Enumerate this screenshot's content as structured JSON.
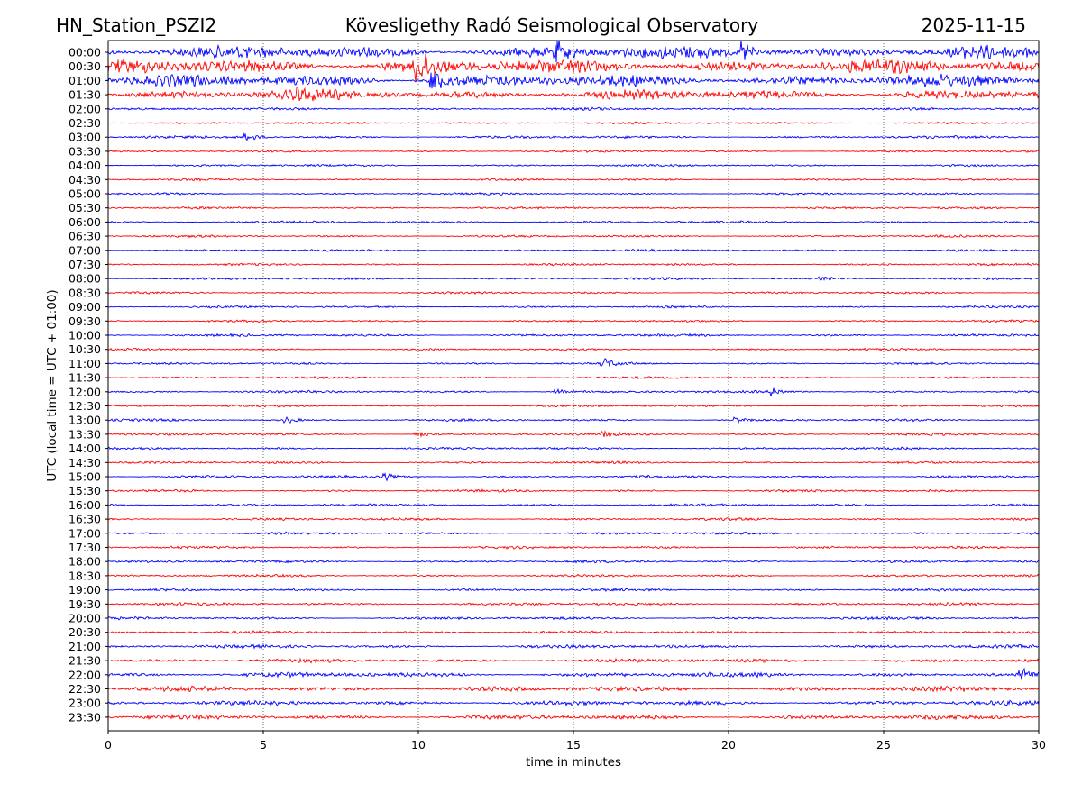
{
  "header": {
    "station": "HN_Station_PSZI2",
    "observatory": "Kövesligethy Radó Seismological Observatory",
    "date": "2025-11-15"
  },
  "chart_data": {
    "type": "line",
    "xlabel": "time in minutes",
    "ylabel": "UTC (local time = UTC + 01:00)",
    "xlim": [
      0,
      30
    ],
    "x_ticks": [
      "0",
      "5",
      "10",
      "15",
      "20",
      "25",
      "30"
    ],
    "x_tick_values": [
      0,
      5,
      10,
      15,
      20,
      25,
      30
    ],
    "grid": "vertical dotted at x ticks",
    "colors": {
      "even": "#0000ff",
      "odd": "#ff0000"
    },
    "rows": [
      "00:00",
      "00:30",
      "01:00",
      "01:30",
      "02:00",
      "02:30",
      "03:00",
      "03:30",
      "04:00",
      "04:30",
      "05:00",
      "05:30",
      "06:00",
      "06:30",
      "07:00",
      "07:30",
      "08:00",
      "08:30",
      "09:00",
      "09:30",
      "10:00",
      "10:30",
      "11:00",
      "11:30",
      "12:00",
      "12:30",
      "13:00",
      "13:30",
      "14:00",
      "14:30",
      "15:00",
      "15:30",
      "16:00",
      "16:30",
      "17:00",
      "17:30",
      "18:00",
      "18:30",
      "19:00",
      "19:30",
      "20:00",
      "20:30",
      "21:00",
      "21:30",
      "22:00",
      "22:30",
      "23:00",
      "23:30"
    ],
    "row_amplitude": [
      6.5,
      7,
      6,
      5,
      1.3,
      1.1,
      1.4,
      1.1,
      1.1,
      1.1,
      1.1,
      1.1,
      1.2,
      1.1,
      1.1,
      1.1,
      1.2,
      1.1,
      1.1,
      1.1,
      1.3,
      1.1,
      1.1,
      1.1,
      1.3,
      1.1,
      1.2,
      1.3,
      1.2,
      1.2,
      1.3,
      1.3,
      1.3,
      1.3,
      1.3,
      1.3,
      1.3,
      1.2,
      1.3,
      1.4,
      1.4,
      1.4,
      1.7,
      1.9,
      2.4,
      2.6,
      2.2,
      2.3
    ],
    "events": [
      {
        "row": 1,
        "x": 10.0,
        "amp": 12
      },
      {
        "row": 2,
        "x": 10.5,
        "amp": 10
      },
      {
        "row": 0,
        "x": 14.5,
        "amp": 8
      },
      {
        "row": 0,
        "x": 20.5,
        "amp": 8
      },
      {
        "row": 3,
        "x": 6.0,
        "amp": 5
      },
      {
        "row": 6,
        "x": 4.5,
        "amp": 3
      },
      {
        "row": 16,
        "x": 23.0,
        "amp": 3
      },
      {
        "row": 22,
        "x": 16.0,
        "amp": 4
      },
      {
        "row": 24,
        "x": 14.5,
        "amp": 3
      },
      {
        "row": 24,
        "x": 21.5,
        "amp": 3
      },
      {
        "row": 26,
        "x": 5.8,
        "amp": 2
      },
      {
        "row": 26,
        "x": 20.3,
        "amp": 2.5
      },
      {
        "row": 27,
        "x": 10.0,
        "amp": 3
      },
      {
        "row": 27,
        "x": 16.0,
        "amp": 3
      },
      {
        "row": 30,
        "x": 9.0,
        "amp": 2.5
      },
      {
        "row": 44,
        "x": 29.5,
        "amp": 4
      }
    ]
  }
}
